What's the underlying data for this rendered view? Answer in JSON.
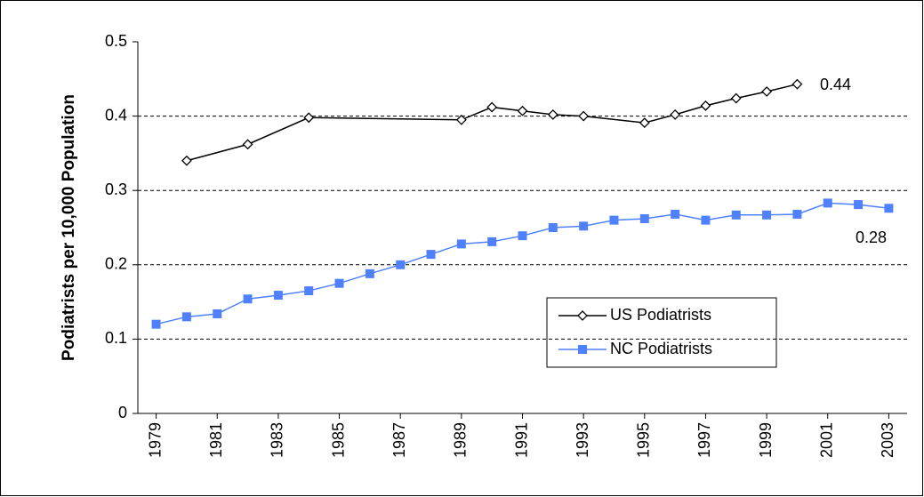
{
  "chart_data": {
    "type": "line",
    "y_label": "Podiatrists per 10,000 Population",
    "xlim": [
      1978.4,
      2003.6
    ],
    "xticks": [
      1979,
      1981,
      1983,
      1985,
      1987,
      1989,
      1991,
      1993,
      1995,
      1997,
      1999,
      2001,
      2003
    ],
    "ylim": [
      0,
      0.5
    ],
    "yticks": [
      0,
      0.1,
      0.2,
      0.3,
      0.4,
      0.5
    ],
    "grid": true,
    "legend": "center-right",
    "series": [
      {
        "name": "US Podiatrists",
        "color": "#000000",
        "marker": "diamond",
        "x": [
          1980,
          1982,
          1984,
          1989,
          1990,
          1991,
          1992,
          1993,
          1995,
          1996,
          1997,
          1998,
          1999,
          2000
        ],
        "values": [
          0.34,
          0.362,
          0.398,
          0.395,
          0.412,
          0.407,
          0.402,
          0.4,
          0.391,
          0.402,
          0.414,
          0.424,
          0.433,
          0.443
        ]
      },
      {
        "name": "NC Podiatrists",
        "color": "#4f81ff",
        "marker": "square",
        "x": [
          1979,
          1980,
          1981,
          1982,
          1983,
          1984,
          1985,
          1986,
          1987,
          1988,
          1989,
          1990,
          1991,
          1992,
          1993,
          1994,
          1995,
          1996,
          1997,
          1998,
          1999,
          2000,
          2001,
          2002,
          2003
        ],
        "values": [
          0.12,
          0.13,
          0.134,
          0.154,
          0.159,
          0.165,
          0.175,
          0.188,
          0.2,
          0.214,
          0.228,
          0.231,
          0.239,
          0.25,
          0.252,
          0.26,
          0.262,
          0.268,
          0.26,
          0.267,
          0.267,
          0.268,
          0.283,
          0.281,
          0.276
        ]
      }
    ],
    "annotations": [
      "0.44",
      "0.28"
    ]
  }
}
